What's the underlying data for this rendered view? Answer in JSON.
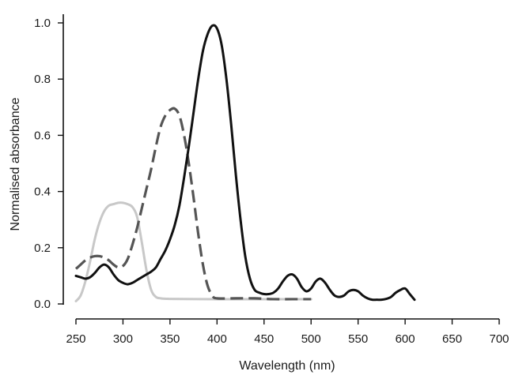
{
  "chart_data": {
    "type": "line",
    "title": "",
    "xlabel": "Wavelength (nm)",
    "ylabel": "Normalised absorbance",
    "xlim": [
      250,
      700
    ],
    "ylim": [
      0,
      1.0
    ],
    "x_ticks": [
      "250",
      "300",
      "350",
      "400",
      "450",
      "500",
      "550",
      "600",
      "650",
      "700"
    ],
    "y_ticks": [
      "0.0",
      "0.2",
      "0.4",
      "0.6",
      "0.8",
      "1.0"
    ],
    "grid": false,
    "legend": "none",
    "series": [
      {
        "color": "#c8c8c8",
        "style": "solid",
        "points": [
          [
            250,
            0.01
          ],
          [
            255,
            0.03
          ],
          [
            260,
            0.08
          ],
          [
            265,
            0.15
          ],
          [
            270,
            0.23
          ],
          [
            275,
            0.29
          ],
          [
            280,
            0.33
          ],
          [
            285,
            0.35
          ],
          [
            290,
            0.355
          ],
          [
            295,
            0.36
          ],
          [
            300,
            0.36
          ],
          [
            305,
            0.355
          ],
          [
            310,
            0.345
          ],
          [
            315,
            0.31
          ],
          [
            320,
            0.22
          ],
          [
            325,
            0.12
          ],
          [
            330,
            0.05
          ],
          [
            335,
            0.025
          ],
          [
            340,
            0.02
          ],
          [
            350,
            0.018
          ],
          [
            400,
            0.017
          ],
          [
            450,
            0.017
          ],
          [
            500,
            0.017
          ]
        ]
      },
      {
        "color": "#555555",
        "style": "dashed",
        "points": [
          [
            250,
            0.125
          ],
          [
            255,
            0.14
          ],
          [
            260,
            0.155
          ],
          [
            265,
            0.165
          ],
          [
            270,
            0.17
          ],
          [
            275,
            0.17
          ],
          [
            280,
            0.165
          ],
          [
            285,
            0.155
          ],
          [
            290,
            0.14
          ],
          [
            295,
            0.13
          ],
          [
            300,
            0.135
          ],
          [
            305,
            0.16
          ],
          [
            310,
            0.21
          ],
          [
            315,
            0.27
          ],
          [
            320,
            0.34
          ],
          [
            325,
            0.41
          ],
          [
            330,
            0.48
          ],
          [
            335,
            0.56
          ],
          [
            340,
            0.63
          ],
          [
            345,
            0.67
          ],
          [
            350,
            0.69
          ],
          [
            355,
            0.695
          ],
          [
            360,
            0.67
          ],
          [
            365,
            0.6
          ],
          [
            370,
            0.5
          ],
          [
            375,
            0.38
          ],
          [
            380,
            0.25
          ],
          [
            385,
            0.14
          ],
          [
            390,
            0.065
          ],
          [
            395,
            0.03
          ],
          [
            400,
            0.02
          ],
          [
            420,
            0.02
          ],
          [
            440,
            0.02
          ],
          [
            460,
            0.017
          ],
          [
            480,
            0.017
          ],
          [
            500,
            0.017
          ]
        ]
      },
      {
        "color": "#111111",
        "style": "solid",
        "points": [
          [
            250,
            0.1
          ],
          [
            255,
            0.095
          ],
          [
            260,
            0.09
          ],
          [
            265,
            0.095
          ],
          [
            270,
            0.11
          ],
          [
            275,
            0.13
          ],
          [
            280,
            0.14
          ],
          [
            285,
            0.13
          ],
          [
            290,
            0.105
          ],
          [
            295,
            0.085
          ],
          [
            300,
            0.075
          ],
          [
            305,
            0.07
          ],
          [
            310,
            0.075
          ],
          [
            315,
            0.085
          ],
          [
            320,
            0.095
          ],
          [
            325,
            0.105
          ],
          [
            330,
            0.115
          ],
          [
            335,
            0.13
          ],
          [
            340,
            0.16
          ],
          [
            345,
            0.19
          ],
          [
            350,
            0.23
          ],
          [
            355,
            0.28
          ],
          [
            360,
            0.35
          ],
          [
            365,
            0.45
          ],
          [
            370,
            0.56
          ],
          [
            375,
            0.68
          ],
          [
            380,
            0.8
          ],
          [
            385,
            0.9
          ],
          [
            390,
            0.96
          ],
          [
            395,
            0.99
          ],
          [
            400,
            0.98
          ],
          [
            405,
            0.92
          ],
          [
            410,
            0.8
          ],
          [
            415,
            0.64
          ],
          [
            420,
            0.46
          ],
          [
            425,
            0.3
          ],
          [
            430,
            0.17
          ],
          [
            435,
            0.09
          ],
          [
            440,
            0.05
          ],
          [
            445,
            0.04
          ],
          [
            450,
            0.035
          ],
          [
            455,
            0.035
          ],
          [
            460,
            0.04
          ],
          [
            465,
            0.055
          ],
          [
            470,
            0.08
          ],
          [
            475,
            0.1
          ],
          [
            480,
            0.105
          ],
          [
            485,
            0.09
          ],
          [
            490,
            0.06
          ],
          [
            495,
            0.045
          ],
          [
            500,
            0.055
          ],
          [
            505,
            0.08
          ],
          [
            510,
            0.09
          ],
          [
            515,
            0.075
          ],
          [
            520,
            0.05
          ],
          [
            525,
            0.03
          ],
          [
            530,
            0.025
          ],
          [
            535,
            0.03
          ],
          [
            540,
            0.045
          ],
          [
            545,
            0.05
          ],
          [
            550,
            0.045
          ],
          [
            555,
            0.03
          ],
          [
            560,
            0.02
          ],
          [
            565,
            0.015
          ],
          [
            570,
            0.015
          ],
          [
            575,
            0.015
          ],
          [
            580,
            0.018
          ],
          [
            585,
            0.025
          ],
          [
            590,
            0.04
          ],
          [
            595,
            0.05
          ],
          [
            600,
            0.055
          ],
          [
            605,
            0.035
          ],
          [
            610,
            0.015
          ]
        ]
      }
    ]
  }
}
